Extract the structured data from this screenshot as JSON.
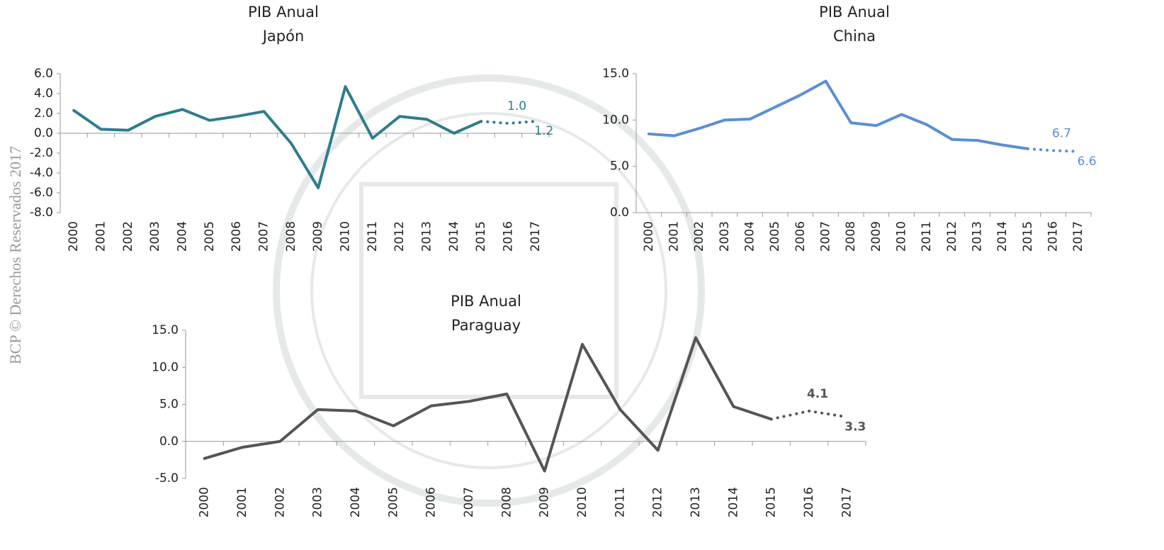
{
  "watermark": "BCP © Derechos Reservados 2017",
  "chart_data": [
    {
      "type": "line",
      "title": "PIB Anual",
      "subtitle": "Japón",
      "categories": [
        "2000",
        "2001",
        "2002",
        "2003",
        "2004",
        "2005",
        "2006",
        "2007",
        "2008",
        "2009",
        "2010",
        "2011",
        "2012",
        "2013",
        "2014",
        "2015",
        "2016",
        "2017"
      ],
      "series": [
        {
          "color": "#2e7d8c",
          "style": "solid",
          "values": [
            2.3,
            0.4,
            0.3,
            1.7,
            2.4,
            1.3,
            1.7,
            2.2,
            -1.0,
            -5.5,
            4.7,
            -0.5,
            1.7,
            1.4,
            0.0,
            1.2,
            null,
            null
          ]
        },
        {
          "color": "#2e7d8c",
          "style": "dotted",
          "values": [
            null,
            null,
            null,
            null,
            null,
            null,
            null,
            null,
            null,
            null,
            null,
            null,
            null,
            null,
            null,
            null,
            1.0,
            1.2
          ],
          "value_labels": [
            null,
            null,
            null,
            null,
            null,
            null,
            null,
            null,
            null,
            null,
            null,
            null,
            null,
            null,
            null,
            null,
            "1.0",
            "1.2"
          ]
        }
      ],
      "ylim": [
        -8,
        6
      ],
      "yticks": [
        {
          "value": -8,
          "label": "-8.0"
        },
        {
          "value": -6,
          "label": "-6.0"
        },
        {
          "value": -4,
          "label": "-4.0"
        },
        {
          "value": -2,
          "label": "-2.0"
        },
        {
          "value": 0,
          "label": "0.0"
        },
        {
          "value": 2,
          "label": "2.0"
        },
        {
          "value": 4,
          "label": "4.0"
        },
        {
          "value": 6,
          "label": "6.0"
        }
      ],
      "grid": false
    },
    {
      "type": "line",
      "title": "PIB Anual",
      "subtitle": "China",
      "categories": [
        "2000",
        "2001",
        "2002",
        "2003",
        "2004",
        "2005",
        "2006",
        "2007",
        "2008",
        "2009",
        "2010",
        "2011",
        "2012",
        "2013",
        "2014",
        "2015",
        "2016",
        "2017"
      ],
      "series": [
        {
          "color": "#5b8fd6",
          "style": "solid",
          "values": [
            8.5,
            8.3,
            9.1,
            10.0,
            10.1,
            11.4,
            12.7,
            14.2,
            9.7,
            9.4,
            10.6,
            9.5,
            7.9,
            7.8,
            7.3,
            6.9,
            null,
            null
          ]
        },
        {
          "color": "#5b8fd6",
          "style": "dotted",
          "values": [
            null,
            null,
            null,
            null,
            null,
            null,
            null,
            null,
            null,
            null,
            null,
            null,
            null,
            null,
            null,
            null,
            6.7,
            6.6
          ]
        }
      ],
      "ylim": [
        0,
        15
      ],
      "yticks": [
        {
          "value": 0,
          "label": "0.0"
        },
        {
          "value": 5,
          "label": "5.0"
        },
        {
          "value": 10,
          "label": "10.0"
        },
        {
          "value": 15,
          "label": "15.0"
        }
      ],
      "grid": false
    },
    {
      "type": "line",
      "title": "PIB Anual",
      "subtitle": "Paraguay",
      "categories": [
        "2000",
        "2001",
        "2002",
        "2003",
        "2004",
        "2005",
        "2006",
        "2007",
        "2008",
        "2009",
        "2010",
        "2011",
        "2012",
        "2013",
        "2014",
        "2015",
        "2016",
        "2017"
      ],
      "series": [
        {
          "color": "#555555",
          "style": "solid",
          "values": [
            -2.3,
            -0.8,
            0.0,
            4.3,
            4.1,
            2.1,
            4.8,
            5.4,
            6.4,
            -4.0,
            13.1,
            4.3,
            -1.2,
            14.0,
            4.7,
            3.0,
            null,
            null
          ]
        },
        {
          "color": "#555555",
          "style": "dotted",
          "values": [
            null,
            null,
            null,
            null,
            null,
            null,
            null,
            null,
            null,
            null,
            null,
            null,
            null,
            null,
            null,
            null,
            4.1,
            3.3
          ]
        }
      ],
      "ylim": [
        -5,
        15
      ],
      "yticks": [
        {
          "value": -5,
          "label": "-5.0"
        },
        {
          "value": 0,
          "label": "0.0"
        },
        {
          "value": 5,
          "label": "5.0"
        },
        {
          "value": 10,
          "label": "10.0"
        },
        {
          "value": 15,
          "label": "15.0"
        }
      ],
      "grid": false
    }
  ]
}
